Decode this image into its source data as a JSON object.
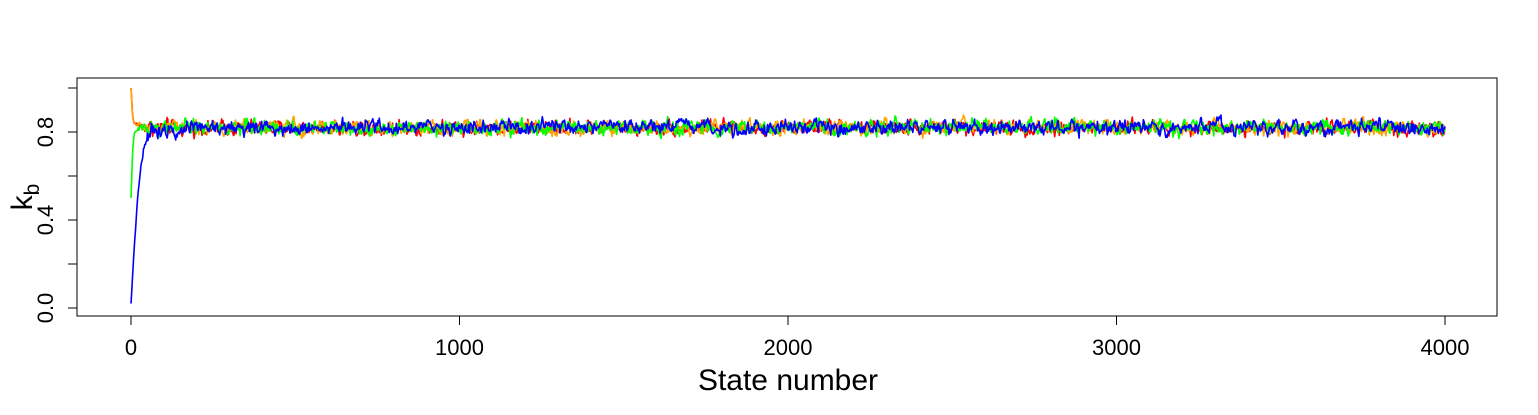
{
  "chart_data": {
    "type": "line",
    "title": "",
    "xlabel": "State number",
    "ylabel": "k",
    "ylabel_subscript": "b",
    "xlim": [
      0,
      4000
    ],
    "ylim": [
      0.0,
      1.0
    ],
    "x_ticks": [
      0,
      1000,
      2000,
      3000,
      4000
    ],
    "x_tick_labels": [
      "0",
      "1000",
      "2000",
      "3000",
      "4000"
    ],
    "y_ticks": [
      0.0,
      0.2,
      0.4,
      0.6,
      0.8,
      1.0
    ],
    "y_tick_labels": [
      "0.0",
      "",
      "0.4",
      "",
      "0.8",
      ""
    ],
    "grid": false,
    "legend": "none",
    "n_states": 4000,
    "series": [
      {
        "color": "#ff0000",
        "start": 1.0,
        "stationary_mean": 0.82,
        "noise_sd": 0.014,
        "x": [
          0,
          5,
          10,
          25,
          50,
          100,
          4000
        ],
        "y": [
          1.0,
          0.87,
          0.84,
          0.83,
          0.82,
          0.82,
          0.82
        ]
      },
      {
        "color": "#ffa500",
        "start": 1.0,
        "stationary_mean": 0.82,
        "noise_sd": 0.014,
        "x": [
          0,
          5,
          10,
          25,
          50,
          100,
          4000
        ],
        "y": [
          1.0,
          0.86,
          0.84,
          0.83,
          0.82,
          0.82,
          0.82
        ]
      },
      {
        "color": "#00ff00",
        "start": 0.5,
        "stationary_mean": 0.82,
        "noise_sd": 0.014,
        "x": [
          0,
          5,
          10,
          20,
          40,
          100,
          4000
        ],
        "y": [
          0.5,
          0.72,
          0.79,
          0.81,
          0.82,
          0.82,
          0.82
        ]
      },
      {
        "color": "#0000ff",
        "start": 0.02,
        "stationary_mean": 0.82,
        "noise_sd": 0.014,
        "x": [
          0,
          10,
          20,
          30,
          40,
          60,
          100,
          4000
        ],
        "y": [
          0.02,
          0.28,
          0.5,
          0.65,
          0.74,
          0.8,
          0.82,
          0.82
        ]
      }
    ]
  }
}
